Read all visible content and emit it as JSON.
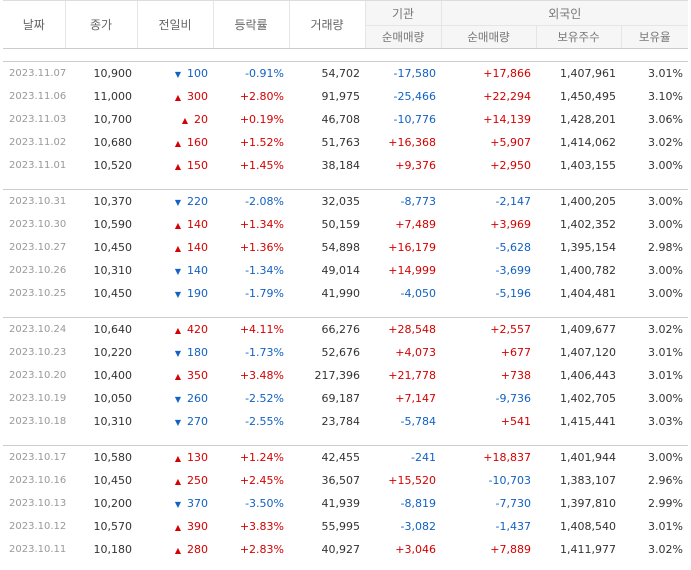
{
  "headers": {
    "date": "날짜",
    "close": "종가",
    "change": "전일비",
    "rate": "등락률",
    "volume": "거래량",
    "inst_group": "기관",
    "inst_net": "순매매량",
    "foreign_group": "외국인",
    "foreign_net": "순매매량",
    "foreign_hold": "보유주수",
    "foreign_ratio": "보유율"
  },
  "colors": {
    "up": "#d50000",
    "down": "#1261c4"
  },
  "blocks": [
    [
      {
        "date": "2023.11.07",
        "close": "10,900",
        "dir": "down",
        "change": "100",
        "rate": "-0.91%",
        "volume": "54,702",
        "inst": "-17,580",
        "foreign": "+17,866",
        "hold": "1,407,961",
        "ratio": "3.01%"
      },
      {
        "date": "2023.11.06",
        "close": "11,000",
        "dir": "up",
        "change": "300",
        "rate": "+2.80%",
        "volume": "91,975",
        "inst": "-25,466",
        "foreign": "+22,294",
        "hold": "1,450,495",
        "ratio": "3.10%"
      },
      {
        "date": "2023.11.03",
        "close": "10,700",
        "dir": "up",
        "change": "20",
        "rate": "+0.19%",
        "volume": "46,708",
        "inst": "-10,776",
        "foreign": "+14,139",
        "hold": "1,428,201",
        "ratio": "3.06%"
      },
      {
        "date": "2023.11.02",
        "close": "10,680",
        "dir": "up",
        "change": "160",
        "rate": "+1.52%",
        "volume": "51,763",
        "inst": "+16,368",
        "foreign": "+5,907",
        "hold": "1,414,062",
        "ratio": "3.02%"
      },
      {
        "date": "2023.11.01",
        "close": "10,520",
        "dir": "up",
        "change": "150",
        "rate": "+1.45%",
        "volume": "38,184",
        "inst": "+9,376",
        "foreign": "+2,950",
        "hold": "1,403,155",
        "ratio": "3.00%"
      }
    ],
    [
      {
        "date": "2023.10.31",
        "close": "10,370",
        "dir": "down",
        "change": "220",
        "rate": "-2.08%",
        "volume": "32,035",
        "inst": "-8,773",
        "foreign": "-2,147",
        "hold": "1,400,205",
        "ratio": "3.00%"
      },
      {
        "date": "2023.10.30",
        "close": "10,590",
        "dir": "up",
        "change": "140",
        "rate": "+1.34%",
        "volume": "50,159",
        "inst": "+7,489",
        "foreign": "+3,969",
        "hold": "1,402,352",
        "ratio": "3.00%"
      },
      {
        "date": "2023.10.27",
        "close": "10,450",
        "dir": "up",
        "change": "140",
        "rate": "+1.36%",
        "volume": "54,898",
        "inst": "+16,179",
        "foreign": "-5,628",
        "hold": "1,395,154",
        "ratio": "2.98%"
      },
      {
        "date": "2023.10.26",
        "close": "10,310",
        "dir": "down",
        "change": "140",
        "rate": "-1.34%",
        "volume": "49,014",
        "inst": "+14,999",
        "foreign": "-3,699",
        "hold": "1,400,782",
        "ratio": "3.00%"
      },
      {
        "date": "2023.10.25",
        "close": "10,450",
        "dir": "down",
        "change": "190",
        "rate": "-1.79%",
        "volume": "41,990",
        "inst": "-4,050",
        "foreign": "-5,196",
        "hold": "1,404,481",
        "ratio": "3.00%"
      }
    ],
    [
      {
        "date": "2023.10.24",
        "close": "10,640",
        "dir": "up",
        "change": "420",
        "rate": "+4.11%",
        "volume": "66,276",
        "inst": "+28,548",
        "foreign": "+2,557",
        "hold": "1,409,677",
        "ratio": "3.02%"
      },
      {
        "date": "2023.10.23",
        "close": "10,220",
        "dir": "down",
        "change": "180",
        "rate": "-1.73%",
        "volume": "52,676",
        "inst": "+4,073",
        "foreign": "+677",
        "hold": "1,407,120",
        "ratio": "3.01%"
      },
      {
        "date": "2023.10.20",
        "close": "10,400",
        "dir": "up",
        "change": "350",
        "rate": "+3.48%",
        "volume": "217,396",
        "inst": "+21,778",
        "foreign": "+738",
        "hold": "1,406,443",
        "ratio": "3.01%"
      },
      {
        "date": "2023.10.19",
        "close": "10,050",
        "dir": "down",
        "change": "260",
        "rate": "-2.52%",
        "volume": "69,187",
        "inst": "+7,147",
        "foreign": "-9,736",
        "hold": "1,402,705",
        "ratio": "3.00%"
      },
      {
        "date": "2023.10.18",
        "close": "10,310",
        "dir": "down",
        "change": "270",
        "rate": "-2.55%",
        "volume": "23,784",
        "inst": "-5,784",
        "foreign": "+541",
        "hold": "1,415,441",
        "ratio": "3.03%"
      }
    ],
    [
      {
        "date": "2023.10.17",
        "close": "10,580",
        "dir": "up",
        "change": "130",
        "rate": "+1.24%",
        "volume": "42,455",
        "inst": "-241",
        "foreign": "+18,837",
        "hold": "1,401,944",
        "ratio": "3.00%"
      },
      {
        "date": "2023.10.16",
        "close": "10,450",
        "dir": "up",
        "change": "250",
        "rate": "+2.45%",
        "volume": "36,507",
        "inst": "+15,520",
        "foreign": "-10,703",
        "hold": "1,383,107",
        "ratio": "2.96%"
      },
      {
        "date": "2023.10.13",
        "close": "10,200",
        "dir": "down",
        "change": "370",
        "rate": "-3.50%",
        "volume": "41,939",
        "inst": "-8,819",
        "foreign": "-7,730",
        "hold": "1,397,810",
        "ratio": "2.99%"
      },
      {
        "date": "2023.10.12",
        "close": "10,570",
        "dir": "up",
        "change": "390",
        "rate": "+3.83%",
        "volume": "55,995",
        "inst": "-3,082",
        "foreign": "-1,437",
        "hold": "1,408,540",
        "ratio": "3.01%"
      },
      {
        "date": "2023.10.11",
        "close": "10,180",
        "dir": "up",
        "change": "280",
        "rate": "+2.83%",
        "volume": "40,927",
        "inst": "+3,046",
        "foreign": "+7,889",
        "hold": "1,411,977",
        "ratio": "3.02%"
      }
    ]
  ]
}
